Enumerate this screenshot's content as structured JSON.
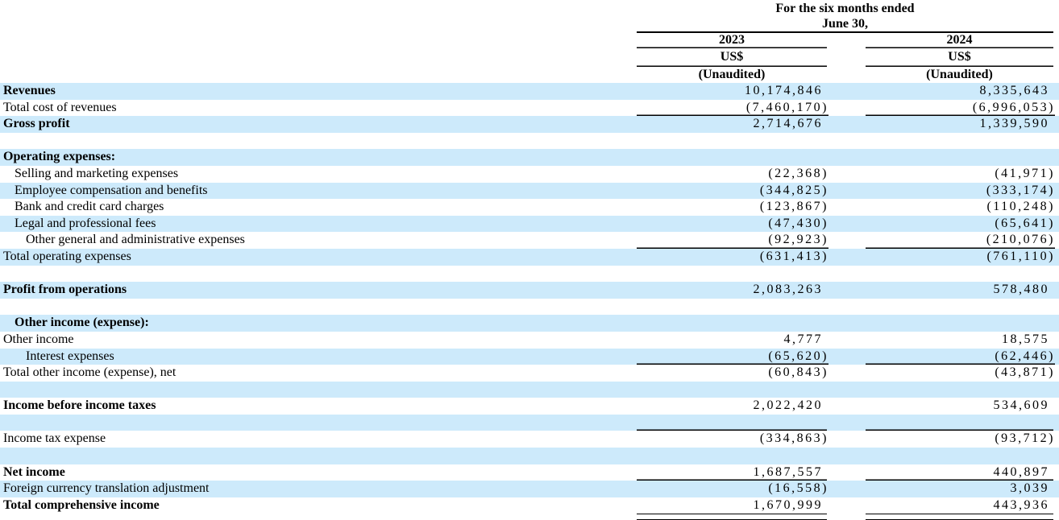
{
  "colors": {
    "stripe": "#cdeafb",
    "rule": "#000000",
    "text": "#000000"
  },
  "header": {
    "period_line1": "For the six months ended",
    "period_line2": "June 30,",
    "columns": [
      {
        "year": "2023",
        "currency": "US$",
        "note": "(Unaudited)"
      },
      {
        "year": "2024",
        "currency": "US$",
        "note": "(Unaudited)"
      }
    ]
  },
  "rows": [
    {
      "label": "Revenues",
      "indent": 0,
      "bold": true,
      "v2023": "10,174,846",
      "v2024": "8,335,643",
      "bg": "stripe",
      "rule": "none"
    },
    {
      "label": "Total cost of revenues",
      "indent": 0,
      "bold": false,
      "v2023": "(7,460,170)",
      "v2024": "(6,996,053)",
      "bg": "plain",
      "rule": "single"
    },
    {
      "label": "Gross profit",
      "indent": 0,
      "bold": true,
      "v2023": "2,714,676",
      "v2024": "1,339,590",
      "bg": "stripe",
      "rule": "none"
    },
    {
      "label": "",
      "indent": 0,
      "bold": false,
      "v2023": "",
      "v2024": "",
      "bg": "plain",
      "rule": "none"
    },
    {
      "label": "Operating expenses:",
      "indent": 0,
      "bold": true,
      "v2023": "",
      "v2024": "",
      "bg": "stripe",
      "rule": "none"
    },
    {
      "label": "Selling and marketing expenses",
      "indent": 1,
      "bold": false,
      "v2023": "(22,368)",
      "v2024": "(41,971)",
      "bg": "plain",
      "rule": "none"
    },
    {
      "label": "Employee compensation and benefits",
      "indent": 1,
      "bold": false,
      "v2023": "(344,825)",
      "v2024": "(333,174)",
      "bg": "stripe",
      "rule": "none"
    },
    {
      "label": "Bank and credit card charges",
      "indent": 1,
      "bold": false,
      "v2023": "(123,867)",
      "v2024": "(110,248)",
      "bg": "plain",
      "rule": "none"
    },
    {
      "label": "Legal and professional fees",
      "indent": 1,
      "bold": false,
      "v2023": "(47,430)",
      "v2024": "(65,641)",
      "bg": "stripe",
      "rule": "none"
    },
    {
      "label": "Other general and administrative expenses",
      "indent": 2,
      "bold": false,
      "v2023": "(92,923)",
      "v2024": "(210,076)",
      "bg": "plain",
      "rule": "single"
    },
    {
      "label": "Total operating expenses",
      "indent": 0,
      "bold": false,
      "v2023": "(631,413)",
      "v2024": "(761,110)",
      "bg": "stripe",
      "rule": "none"
    },
    {
      "label": "",
      "indent": 0,
      "bold": false,
      "v2023": "",
      "v2024": "",
      "bg": "plain",
      "rule": "none"
    },
    {
      "label": "Profit from operations",
      "indent": 0,
      "bold": true,
      "v2023": "2,083,263",
      "v2024": "578,480",
      "bg": "stripe",
      "rule": "none"
    },
    {
      "label": "",
      "indent": 0,
      "bold": false,
      "v2023": "",
      "v2024": "",
      "bg": "plain",
      "rule": "none"
    },
    {
      "label": "Other income (expense):",
      "indent": 1,
      "bold": true,
      "v2023": "",
      "v2024": "",
      "bg": "stripe",
      "rule": "none"
    },
    {
      "label": "Other income",
      "indent": 0,
      "bold": false,
      "v2023": "4,777",
      "v2024": "18,575",
      "bg": "plain",
      "rule": "none"
    },
    {
      "label": "Interest expenses",
      "indent": 2,
      "bold": false,
      "v2023": "(65,620)",
      "v2024": "(62,446)",
      "bg": "stripe",
      "rule": "single"
    },
    {
      "label": "Total other income (expense), net",
      "indent": 0,
      "bold": false,
      "v2023": "(60,843)",
      "v2024": "(43,871)",
      "bg": "plain",
      "rule": "none"
    },
    {
      "label": "",
      "indent": 0,
      "bold": false,
      "v2023": "",
      "v2024": "",
      "bg": "stripe",
      "rule": "none"
    },
    {
      "label": "Income before income taxes",
      "indent": 0,
      "bold": true,
      "v2023": "2,022,420",
      "v2024": "534,609",
      "bg": "plain",
      "rule": "none"
    },
    {
      "label": "",
      "indent": 0,
      "bold": false,
      "v2023": "",
      "v2024": "",
      "bg": "stripe",
      "rule": "single"
    },
    {
      "label": "Income tax expense",
      "indent": 0,
      "bold": false,
      "v2023": "(334,863)",
      "v2024": "(93,712)",
      "bg": "plain",
      "rule": "none"
    },
    {
      "label": "",
      "indent": 0,
      "bold": false,
      "v2023": "",
      "v2024": "",
      "bg": "stripe",
      "rule": "none"
    },
    {
      "label": "Net income",
      "indent": 0,
      "bold": true,
      "v2023": "1,687,557",
      "v2024": "440,897",
      "bg": "plain",
      "rule": "single"
    },
    {
      "label": "Foreign currency translation adjustment",
      "indent": 0,
      "bold": false,
      "v2023": "(16,558)",
      "v2024": "3,039",
      "bg": "stripe",
      "rule": "none"
    },
    {
      "label": "Total comprehensive income",
      "indent": 0,
      "bold": true,
      "v2023": "1,670,999",
      "v2024": "443,936",
      "bg": "plain",
      "rule": "double"
    }
  ]
}
